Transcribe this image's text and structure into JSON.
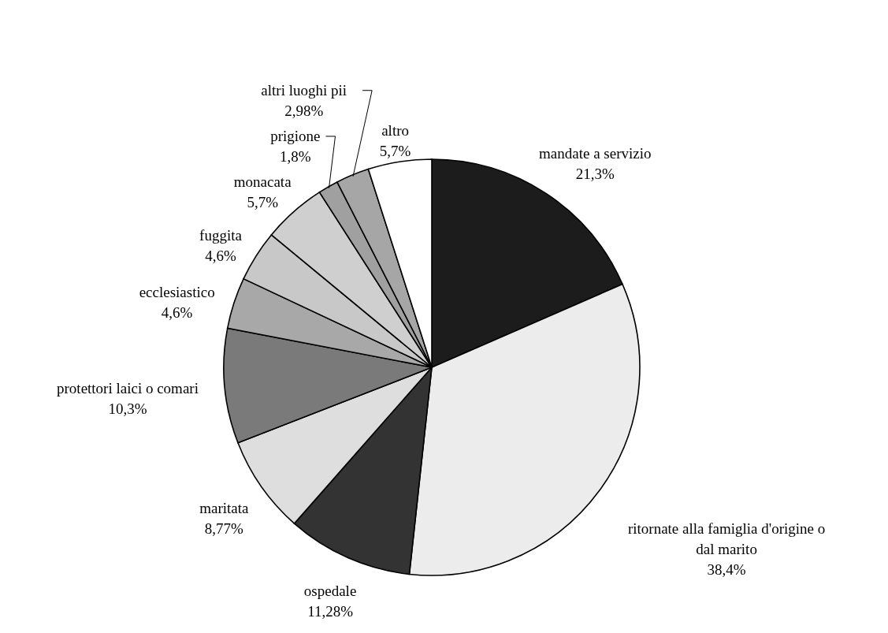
{
  "chart_data": {
    "type": "pie",
    "categories": [
      "mandate a servizio",
      "ritornate alla famiglia d'origine o dal marito",
      "ospedale",
      "maritata",
      "protettori laici o comari",
      "ecclesiastico",
      "fuggita",
      "monacata",
      "prigione",
      "altri luoghi pii",
      "altro"
    ],
    "values": [
      21.3,
      38.4,
      11.28,
      8.77,
      10.3,
      4.6,
      4.6,
      5.7,
      1.8,
      2.98,
      5.7
    ],
    "value_labels": [
      "21,3%",
      "38,4%",
      "11,28%",
      "8,77%",
      "10,3%",
      "4,6%",
      "4,6%",
      "5,7%",
      "1,8%",
      "2,98%",
      "5,7%"
    ],
    "colors": [
      "#1c1c1c",
      "#ececec",
      "#333333",
      "#dedede",
      "#7a7a7a",
      "#a8a8a8",
      "#c8c8c8",
      "#cfcfcf",
      "#a0a0a0",
      "#a6a6a6",
      "#ffffff"
    ]
  }
}
